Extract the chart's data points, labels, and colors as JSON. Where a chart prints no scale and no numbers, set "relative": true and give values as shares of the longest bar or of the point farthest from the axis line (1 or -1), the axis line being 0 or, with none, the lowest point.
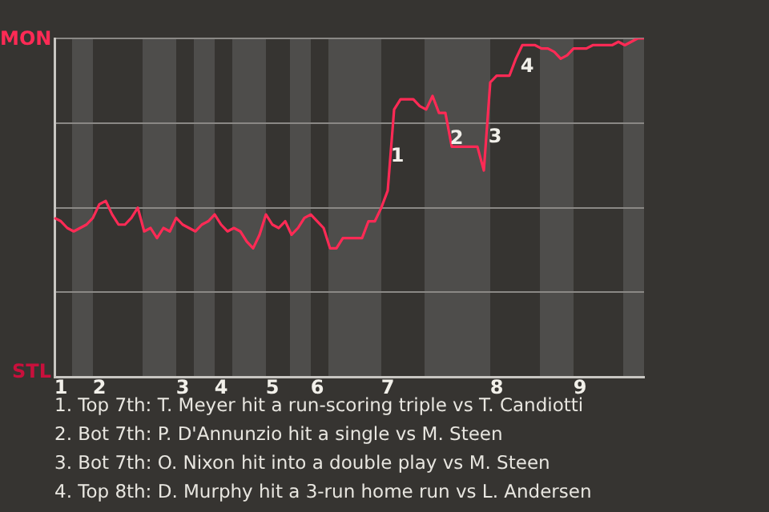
{
  "chart_data": {
    "type": "line",
    "color": "#ff2a55",
    "marker": "none",
    "grid": "y",
    "relative": true,
    "categories": [
      null,
      "1",
      null,
      null,
      null,
      null,
      null,
      "2",
      null,
      null,
      null,
      null,
      null,
      null,
      null,
      null,
      null,
      null,
      null,
      null,
      "3",
      null,
      null,
      null,
      null,
      null,
      "4",
      null,
      null,
      null,
      null,
      null,
      null,
      null,
      "5",
      null,
      null,
      null,
      null,
      null,
      null,
      "6",
      null,
      null,
      null,
      null,
      null,
      null,
      null,
      null,
      null,
      null,
      "7",
      null,
      null,
      null,
      null,
      null,
      null,
      null,
      null,
      null,
      null,
      null,
      null,
      null,
      null,
      null,
      null,
      "8",
      null,
      null,
      null,
      null,
      null,
      null,
      null,
      null,
      null,
      null,
      null,
      null,
      "9",
      null,
      null,
      null,
      null,
      null,
      null,
      null,
      null,
      null,
      null
    ],
    "values": [
      0.47,
      0.46,
      0.44,
      0.43,
      0.44,
      0.45,
      0.47,
      0.51,
      0.52,
      0.48,
      0.45,
      0.45,
      0.47,
      0.5,
      0.43,
      0.44,
      0.41,
      0.44,
      0.43,
      0.47,
      0.45,
      0.44,
      0.43,
      0.45,
      0.46,
      0.48,
      0.45,
      0.43,
      0.44,
      0.43,
      0.4,
      0.38,
      0.42,
      0.48,
      0.45,
      0.44,
      0.46,
      0.42,
      0.44,
      0.47,
      0.48,
      0.46,
      0.44,
      0.38,
      0.38,
      0.41,
      0.41,
      0.41,
      0.41,
      0.46,
      0.46,
      0.5,
      0.55,
      0.79,
      0.82,
      0.82,
      0.82,
      0.8,
      0.79,
      0.83,
      0.78,
      0.78,
      0.68,
      0.68,
      0.68,
      0.68,
      0.68,
      0.61,
      0.87,
      0.89,
      0.89,
      0.89,
      0.94,
      0.98,
      0.98,
      0.98,
      0.97,
      0.97,
      0.96,
      0.94,
      0.95,
      0.97,
      0.97,
      0.97,
      0.98,
      0.98,
      0.98,
      0.98,
      0.99,
      0.98,
      0.99,
      1,
      1
    ],
    "annotations": [
      "MON",
      "STL",
      "1",
      "2",
      "3",
      "4",
      "1. Top 7th: T. Meyer hit a run-scoring triple vs T. Candiotti",
      "2. Bot 7th: P. D'Annunzio hit a single vs M. Steen",
      "3. Bot 7th: O. Nixon hit into a double play vs M. Steen",
      "4. Top 8th: D. Murphy hit a 3-run home run vs L. Andersen"
    ]
  }
}
